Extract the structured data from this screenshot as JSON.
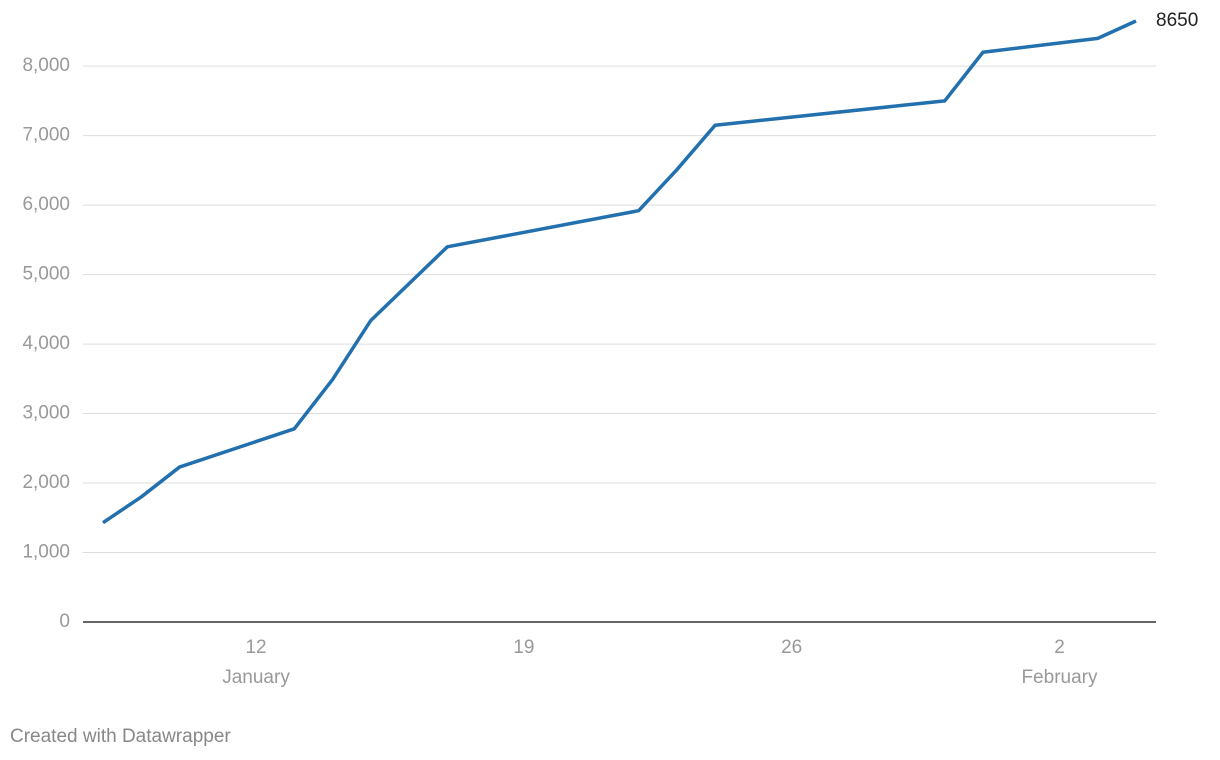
{
  "chart_data": {
    "type": "line",
    "x": [
      "01-08",
      "01-09",
      "01-10",
      "01-13",
      "01-14",
      "01-15",
      "01-17",
      "01-22",
      "01-23",
      "01-24",
      "01-30",
      "01-31",
      "02-03",
      "02-04"
    ],
    "series": [
      {
        "color": "#2270ae",
        "values": [
          1430,
          1800,
          2230,
          2780,
          3490,
          4340,
          5400,
          5920,
          6510,
          7150,
          7500,
          8200,
          8400,
          8650
        ]
      }
    ],
    "label_last": true,
    "ylim": [
      0,
      8650
    ],
    "yticks": [
      0,
      {
        "value": 1000,
        "label": "1,000"
      },
      {
        "value": 2000,
        "label": "2,000"
      },
      {
        "value": 3000,
        "label": "3,000"
      },
      {
        "value": 4000,
        "label": "4,000"
      },
      {
        "value": 5000,
        "label": "5,000"
      },
      {
        "value": 6000,
        "label": "6,000"
      },
      {
        "value": 7000,
        "label": "7,000"
      },
      {
        "value": 8000,
        "label": "8,000"
      }
    ],
    "xticks": [
      {
        "value": "01-12",
        "label": "12"
      },
      {
        "value": "01-19",
        "label": "19"
      },
      {
        "value": "01-26",
        "label": "26"
      },
      {
        "value": "02-02",
        "label": "2"
      }
    ],
    "month_labels": [
      {
        "value": "01-12",
        "label": "January"
      },
      {
        "value": "02-02",
        "label": "February"
      }
    ],
    "grid": true,
    "footer": "Created with Datawrapper"
  }
}
